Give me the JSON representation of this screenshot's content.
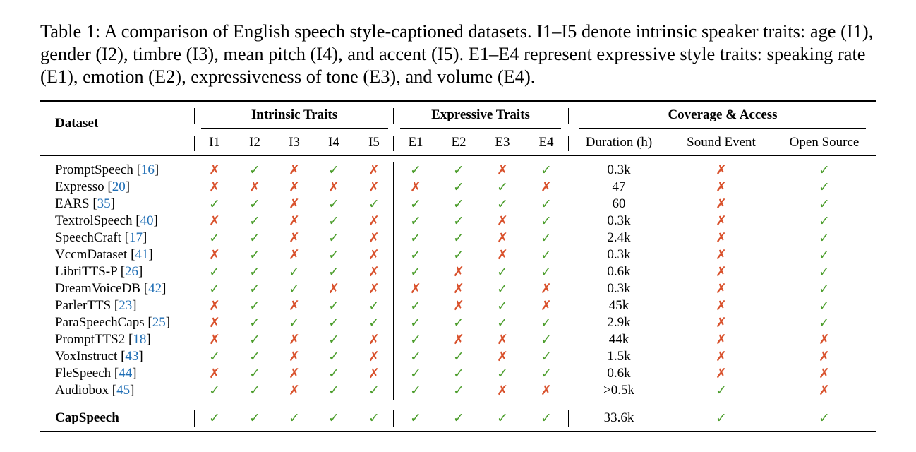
{
  "caption": "Table 1: A comparison of English speech style-captioned datasets. I1–I5 denote intrinsic speaker traits: age (I1), gender (I2), timbre (I3), mean pitch (I4), and accent (I5). E1–E4 represent expressive style traits: speaking rate (E1), emotion (E2), expressiveness of tone (E3), and volume (E4).",
  "headers": {
    "dataset": "Dataset",
    "groups": [
      "Intrinsic Traits",
      "Expressive Traits",
      "Coverage & Access"
    ],
    "intrinsic": [
      "I1",
      "I2",
      "I3",
      "I4",
      "I5"
    ],
    "expressive": [
      "E1",
      "E2",
      "E3",
      "E4"
    ],
    "coverage": [
      "Duration (h)",
      "Sound Event",
      "Open Source"
    ]
  },
  "symbols": {
    "yes": "✓",
    "no": "✗"
  },
  "colors": {
    "yes": "#4d9e2d",
    "no": "#d9512c",
    "ref": "#1f6eb5"
  },
  "rows": [
    {
      "name": "PromptSpeech",
      "ref": "16",
      "i": [
        0,
        1,
        0,
        1,
        0
      ],
      "e": [
        1,
        1,
        0,
        1
      ],
      "duration": "0.3k",
      "sound": 0,
      "open": 1
    },
    {
      "name": "Expresso",
      "ref": "20",
      "i": [
        0,
        0,
        0,
        0,
        0
      ],
      "e": [
        0,
        1,
        1,
        0
      ],
      "duration": "47",
      "sound": 0,
      "open": 1
    },
    {
      "name": "EARS",
      "ref": "35",
      "i": [
        1,
        1,
        0,
        1,
        1
      ],
      "e": [
        1,
        1,
        1,
        1
      ],
      "duration": "60",
      "sound": 0,
      "open": 1
    },
    {
      "name": "TextrolSpeech",
      "ref": "40",
      "i": [
        0,
        1,
        0,
        1,
        0
      ],
      "e": [
        1,
        1,
        0,
        1
      ],
      "duration": "0.3k",
      "sound": 0,
      "open": 1
    },
    {
      "name": "SpeechCraft",
      "ref": "17",
      "i": [
        1,
        1,
        0,
        1,
        0
      ],
      "e": [
        1,
        1,
        0,
        1
      ],
      "duration": "2.4k",
      "sound": 0,
      "open": 1
    },
    {
      "name": "VccmDataset",
      "ref": "41",
      "i": [
        0,
        1,
        0,
        1,
        0
      ],
      "e": [
        1,
        1,
        0,
        1
      ],
      "duration": "0.3k",
      "sound": 0,
      "open": 1
    },
    {
      "name": "LibriTTS-P",
      "ref": "26",
      "i": [
        1,
        1,
        1,
        1,
        0
      ],
      "e": [
        1,
        0,
        1,
        1
      ],
      "duration": "0.6k",
      "sound": 0,
      "open": 1
    },
    {
      "name": "DreamVoiceDB",
      "ref": "42",
      "i": [
        1,
        1,
        1,
        0,
        0
      ],
      "e": [
        0,
        0,
        1,
        0
      ],
      "duration": "0.3k",
      "sound": 0,
      "open": 1
    },
    {
      "name": "ParlerTTS",
      "ref": "23",
      "i": [
        0,
        1,
        0,
        1,
        1
      ],
      "e": [
        1,
        0,
        1,
        0
      ],
      "duration": "45k",
      "sound": 0,
      "open": 1
    },
    {
      "name": "ParaSpeechCaps",
      "ref": "25",
      "i": [
        0,
        1,
        1,
        1,
        1
      ],
      "e": [
        1,
        1,
        1,
        1
      ],
      "duration": "2.9k",
      "sound": 0,
      "open": 1
    },
    {
      "name": "PromptTTS2",
      "ref": "18",
      "i": [
        0,
        1,
        0,
        1,
        0
      ],
      "e": [
        1,
        0,
        0,
        1
      ],
      "duration": "44k",
      "sound": 0,
      "open": 0
    },
    {
      "name": "VoxInstruct",
      "ref": "43",
      "i": [
        1,
        1,
        0,
        1,
        0
      ],
      "e": [
        1,
        1,
        0,
        1
      ],
      "duration": "1.5k",
      "sound": 0,
      "open": 0
    },
    {
      "name": "FleSpeech",
      "ref": "44",
      "i": [
        0,
        1,
        0,
        1,
        0
      ],
      "e": [
        1,
        1,
        1,
        1
      ],
      "duration": "0.6k",
      "sound": 0,
      "open": 0
    },
    {
      "name": "Audiobox",
      "ref": "45",
      "i": [
        1,
        1,
        0,
        1,
        1
      ],
      "e": [
        1,
        1,
        0,
        0
      ],
      "duration": ">0.5k",
      "sound": 1,
      "open": 0
    }
  ],
  "final_row": {
    "name": "CapSpeech",
    "i": [
      1,
      1,
      1,
      1,
      1
    ],
    "e": [
      1,
      1,
      1,
      1
    ],
    "duration": "33.6k",
    "sound": 1,
    "open": 1
  }
}
